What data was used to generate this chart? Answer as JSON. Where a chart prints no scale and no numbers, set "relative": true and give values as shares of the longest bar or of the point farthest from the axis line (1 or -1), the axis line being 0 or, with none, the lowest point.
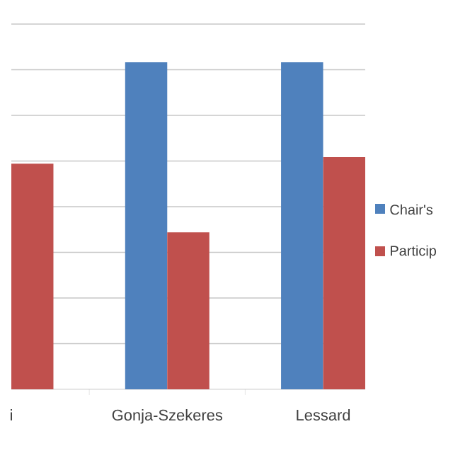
{
  "chart_data": {
    "type": "bar",
    "relative": true,
    "grid": "y",
    "legend": "right",
    "categories": [
      "i",
      "Gonja-Szekeres",
      "Lessard"
    ],
    "series": [
      {
        "name": "Chair's",
        "color": "#4f81bd",
        "values": [
          null,
          1,
          1
        ]
      },
      {
        "name": "Particip",
        "color": "#c0504d",
        "values": [
          0.69,
          0.48,
          0.71
        ]
      }
    ]
  }
}
